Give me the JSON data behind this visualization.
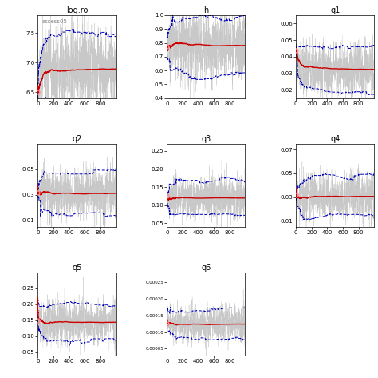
{
  "panels": [
    {
      "title": "log.ro",
      "ylim": [
        6.4,
        7.8
      ],
      "yticks": [
        6.5,
        7.0,
        7.5
      ],
      "true_val": 6.5,
      "mean_val": 6.9,
      "spread": 0.35,
      "ci_spread": 0.38,
      "annotation": "assess05"
    },
    {
      "title": "h",
      "ylim": [
        0.4,
        1.0
      ],
      "yticks": [
        0.4,
        0.5,
        0.6,
        0.7,
        0.8,
        0.9,
        1.0
      ],
      "true_val": 0.775,
      "mean_val": 0.78,
      "spread": 0.13,
      "ci_spread": 0.19,
      "annotation": ""
    },
    {
      "title": "q1",
      "ylim": [
        0.015,
        0.065
      ],
      "yticks": [
        0.02,
        0.03,
        0.04,
        0.05,
        0.06
      ],
      "true_val": 0.044,
      "mean_val": 0.032,
      "spread": 0.008,
      "ci_spread": 0.012,
      "annotation": ""
    },
    {
      "title": "q2",
      "ylim": [
        0.005,
        0.07
      ],
      "yticks": [
        0.01,
        0.03,
        0.05
      ],
      "true_val": 0.032,
      "mean_val": 0.031,
      "spread": 0.01,
      "ci_spread": 0.018,
      "annotation": ""
    },
    {
      "title": "q3",
      "ylim": [
        0.04,
        0.27
      ],
      "yticks": [
        0.05,
        0.1,
        0.15,
        0.2,
        0.25
      ],
      "true_val": 0.125,
      "mean_val": 0.12,
      "spread": 0.03,
      "ci_spread": 0.055,
      "annotation": ""
    },
    {
      "title": "q4",
      "ylim": [
        0.005,
        0.075
      ],
      "yticks": [
        0.01,
        0.03,
        0.05,
        0.07
      ],
      "true_val": 0.032,
      "mean_val": 0.031,
      "spread": 0.01,
      "ci_spread": 0.018,
      "annotation": ""
    },
    {
      "title": "q5",
      "ylim": [
        0.04,
        0.3
      ],
      "yticks": [
        0.05,
        0.1,
        0.15,
        0.2,
        0.25
      ],
      "true_val": 0.15,
      "mean_val": 0.143,
      "spread": 0.035,
      "ci_spread": 0.06,
      "annotation": ""
    },
    {
      "title": "q6",
      "ylim": [
        3e-05,
        0.00028
      ],
      "yticks": [
        5e-05,
        0.0001,
        0.00015,
        0.0002,
        0.00025
      ],
      "true_val": 0.000125,
      "mean_val": 0.000125,
      "spread": 2.8e-05,
      "ci_spread": 6e-05,
      "annotation": ""
    }
  ],
  "n_iter": 1000,
  "burn_in": 30,
  "trace_color": "#c8c8c8",
  "mean_color": "#cc0000",
  "ci_color": "#0000bb",
  "point_color": "#ff8888",
  "bg_color": "#ffffff"
}
